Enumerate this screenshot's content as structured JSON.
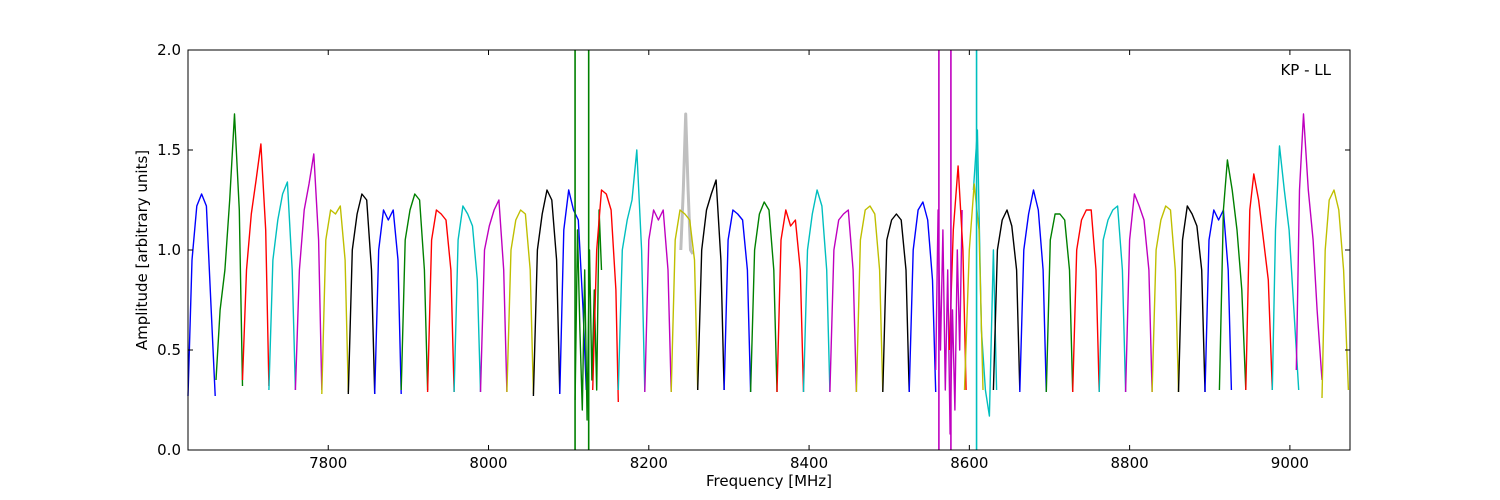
{
  "chart_data": {
    "type": "line",
    "title": "",
    "annotation": "KP - LL",
    "xlabel": "Frequency [MHz]",
    "ylabel": "Amplitude [arbitrary units]",
    "xlim": [
      7625,
      9075
    ],
    "ylim": [
      0.0,
      2.0
    ],
    "xticks": [
      7800,
      8000,
      8200,
      8400,
      8600,
      8800,
      9000
    ],
    "yticks": [
      0.0,
      0.5,
      1.0,
      1.5,
      2.0
    ],
    "grid": false,
    "palette": [
      "#0000ff",
      "#008000",
      "#ff0000",
      "#00bfbf",
      "#bf00bf",
      "#bfbf00",
      "#000000"
    ],
    "series": [
      {
        "color": "#0000ff",
        "x": [
          7625,
          7630,
          7636,
          7642,
          7648,
          7654,
          7659
        ],
        "y": [
          0.27,
          0.95,
          1.22,
          1.28,
          1.22,
          0.7,
          0.27
        ]
      },
      {
        "color": "#008000",
        "x": [
          7660,
          7665,
          7671,
          7677,
          7683,
          7689,
          7693
        ],
        "y": [
          0.35,
          0.7,
          0.9,
          1.25,
          1.68,
          1.2,
          0.32
        ]
      },
      {
        "color": "#ff0000",
        "x": [
          7693,
          7698,
          7704,
          7710,
          7716,
          7722,
          7726
        ],
        "y": [
          0.35,
          0.9,
          1.18,
          1.35,
          1.53,
          1.1,
          0.32
        ]
      },
      {
        "color": "#00bfbf",
        "x": [
          7726,
          7731,
          7737,
          7743,
          7749,
          7755,
          7759
        ],
        "y": [
          0.3,
          0.95,
          1.15,
          1.28,
          1.34,
          0.9,
          0.3
        ]
      },
      {
        "color": "#bf00bf",
        "x": [
          7759,
          7764,
          7770,
          7776,
          7782,
          7788,
          7792
        ],
        "y": [
          0.3,
          0.9,
          1.2,
          1.33,
          1.48,
          1.05,
          0.3
        ]
      },
      {
        "color": "#bfbf00",
        "x": [
          7792,
          7797,
          7803,
          7809,
          7815,
          7821,
          7825
        ],
        "y": [
          0.28,
          1.05,
          1.2,
          1.18,
          1.22,
          0.95,
          0.29
        ]
      },
      {
        "color": "#000000",
        "x": [
          7825,
          7830,
          7836,
          7842,
          7848,
          7854,
          7858
        ],
        "y": [
          0.28,
          1.0,
          1.18,
          1.28,
          1.25,
          0.9,
          0.28
        ]
      },
      {
        "color": "#0000ff",
        "x": [
          7858,
          7863,
          7869,
          7875,
          7881,
          7887,
          7891
        ],
        "y": [
          0.28,
          1.0,
          1.2,
          1.15,
          1.2,
          0.95,
          0.28
        ]
      },
      {
        "color": "#008000",
        "x": [
          7891,
          7896,
          7902,
          7908,
          7914,
          7920,
          7924
        ],
        "y": [
          0.3,
          1.05,
          1.2,
          1.28,
          1.25,
          0.9,
          0.3
        ]
      },
      {
        "color": "#ff0000",
        "x": [
          7924,
          7929,
          7935,
          7941,
          7947,
          7953,
          7957
        ],
        "y": [
          0.29,
          1.05,
          1.2,
          1.18,
          1.15,
          0.9,
          0.29
        ]
      },
      {
        "color": "#00bfbf",
        "x": [
          7957,
          7962,
          7968,
          7974,
          7980,
          7986,
          7990
        ],
        "y": [
          0.29,
          1.05,
          1.22,
          1.18,
          1.12,
          0.85,
          0.29
        ]
      },
      {
        "color": "#bf00bf",
        "x": [
          7990,
          7995,
          8001,
          8007,
          8013,
          8019,
          8023
        ],
        "y": [
          0.29,
          1.0,
          1.12,
          1.2,
          1.25,
          0.9,
          0.29
        ]
      },
      {
        "color": "#bfbf00",
        "x": [
          8023,
          8028,
          8034,
          8040,
          8046,
          8052,
          8056
        ],
        "y": [
          0.29,
          1.0,
          1.15,
          1.2,
          1.18,
          0.9,
          0.28
        ]
      },
      {
        "color": "#000000",
        "x": [
          8056,
          8061,
          8067,
          8073,
          8079,
          8085,
          8089
        ],
        "y": [
          0.27,
          1.0,
          1.18,
          1.3,
          1.25,
          0.95,
          0.28
        ]
      },
      {
        "color": "#0000ff",
        "x": [
          8089,
          8094,
          8100,
          8106,
          8112,
          8118,
          8122
        ],
        "y": [
          0.28,
          1.1,
          1.3,
          1.2,
          1.15,
          0.7,
          0.3
        ]
      },
      {
        "color": "#008000",
        "x": [
          8108,
          8111,
          8114,
          8117,
          8120,
          8123,
          8126,
          8129,
          8132,
          8135,
          8138,
          8141
        ],
        "y": [
          0.25,
          1.1,
          0.6,
          0.2,
          0.9,
          0.15,
          1.0,
          0.35,
          0.8,
          0.3,
          1.2,
          0.9
        ]
      },
      {
        "color": "#ff0000",
        "x": [
          8130,
          8135,
          8141,
          8147,
          8153,
          8159,
          8162
        ],
        "y": [
          0.3,
          1.0,
          1.3,
          1.28,
          1.2,
          0.8,
          0.24
        ]
      },
      {
        "color": "#00bfbf",
        "x": [
          8162,
          8167,
          8173,
          8179,
          8185,
          8191,
          8195
        ],
        "y": [
          0.3,
          1.0,
          1.15,
          1.25,
          1.5,
          1.0,
          0.29
        ]
      },
      {
        "color": "#bf00bf",
        "x": [
          8195,
          8200,
          8206,
          8212,
          8218,
          8224,
          8228
        ],
        "y": [
          0.29,
          1.05,
          1.2,
          1.15,
          1.2,
          0.9,
          0.29
        ]
      },
      {
        "color": "#bfbf00",
        "x": [
          8228,
          8233,
          8239,
          8245,
          8251,
          8257,
          8261
        ],
        "y": [
          0.29,
          1.05,
          1.2,
          1.18,
          1.15,
          0.95,
          0.3
        ]
      },
      {
        "color": "#000000",
        "x": [
          8261,
          8266,
          8272,
          8278,
          8284,
          8290,
          8294
        ],
        "y": [
          0.3,
          1.0,
          1.2,
          1.28,
          1.35,
          0.95,
          0.3
        ]
      },
      {
        "color": "#0000ff",
        "x": [
          8294,
          8299,
          8305,
          8311,
          8317,
          8323,
          8327
        ],
        "y": [
          0.3,
          1.05,
          1.2,
          1.18,
          1.15,
          0.9,
          0.29
        ]
      },
      {
        "color": "#008000",
        "x": [
          8327,
          8332,
          8338,
          8344,
          8350,
          8356,
          8360
        ],
        "y": [
          0.29,
          1.0,
          1.18,
          1.24,
          1.2,
          0.9,
          0.29
        ]
      },
      {
        "color": "#ff0000",
        "x": [
          8360,
          8365,
          8371,
          8377,
          8383,
          8389,
          8393
        ],
        "y": [
          0.29,
          1.05,
          1.2,
          1.12,
          1.15,
          0.9,
          0.29
        ]
      },
      {
        "color": "#00bfbf",
        "x": [
          8393,
          8398,
          8404,
          8410,
          8416,
          8422,
          8426
        ],
        "y": [
          0.29,
          1.0,
          1.18,
          1.3,
          1.22,
          0.9,
          0.29
        ]
      },
      {
        "color": "#bf00bf",
        "x": [
          8426,
          8431,
          8437,
          8443,
          8449,
          8455,
          8459
        ],
        "y": [
          0.29,
          1.0,
          1.15,
          1.18,
          1.2,
          0.9,
          0.29
        ]
      },
      {
        "color": "#bfbf00",
        "x": [
          8459,
          8464,
          8470,
          8476,
          8482,
          8488,
          8492
        ],
        "y": [
          0.29,
          1.05,
          1.2,
          1.22,
          1.18,
          0.9,
          0.29
        ]
      },
      {
        "color": "#000000",
        "x": [
          8492,
          8497,
          8503,
          8509,
          8515,
          8521,
          8525
        ],
        "y": [
          0.29,
          1.05,
          1.15,
          1.18,
          1.15,
          0.9,
          0.29
        ]
      },
      {
        "color": "#0000ff",
        "x": [
          8525,
          8530,
          8536,
          8542,
          8548,
          8554,
          8558
        ],
        "y": [
          0.29,
          1.0,
          1.2,
          1.24,
          1.15,
          0.85,
          0.29
        ]
      },
      {
        "color": "#bf00bf",
        "x": [
          8558,
          8561,
          8564,
          8567,
          8570,
          8573,
          8576,
          8579,
          8582,
          8585,
          8588,
          8591
        ],
        "y": [
          0.4,
          1.2,
          0.5,
          1.1,
          0.3,
          0.9,
          0.08,
          0.7,
          0.2,
          1.0,
          0.5,
          1.2
        ]
      },
      {
        "color": "#ff0000",
        "x": [
          8575,
          8580,
          8586,
          8592,
          8596
        ],
        "y": [
          0.5,
          1.1,
          1.42,
          1.0,
          0.3
        ]
      },
      {
        "color": "#00bfbf",
        "x": [
          8605,
          8610,
          8615,
          8620,
          8625,
          8630,
          8634
        ],
        "y": [
          1.3,
          1.6,
          0.6,
          0.3,
          0.17,
          1.0,
          0.3
        ]
      },
      {
        "color": "#bfbf00",
        "x": [
          8594,
          8600,
          8606,
          8612,
          8617
        ],
        "y": [
          0.3,
          1.0,
          1.33,
          1.1,
          0.3
        ]
      },
      {
        "color": "#000000",
        "x": [
          8630,
          8635,
          8641,
          8647,
          8653,
          8659,
          8663
        ],
        "y": [
          0.3,
          1.0,
          1.15,
          1.2,
          1.12,
          0.9,
          0.3
        ]
      },
      {
        "color": "#0000ff",
        "x": [
          8663,
          8668,
          8674,
          8680,
          8686,
          8692,
          8696
        ],
        "y": [
          0.29,
          1.0,
          1.18,
          1.3,
          1.2,
          0.9,
          0.29
        ]
      },
      {
        "color": "#008000",
        "x": [
          8696,
          8701,
          8707,
          8713,
          8719,
          8725,
          8729
        ],
        "y": [
          0.29,
          1.05,
          1.18,
          1.18,
          1.15,
          0.9,
          0.29
        ]
      },
      {
        "color": "#ff0000",
        "x": [
          8729,
          8734,
          8740,
          8746,
          8752,
          8758,
          8762
        ],
        "y": [
          0.29,
          1.0,
          1.15,
          1.2,
          1.2,
          0.9,
          0.29
        ]
      },
      {
        "color": "#00bfbf",
        "x": [
          8762,
          8767,
          8773,
          8779,
          8785,
          8791,
          8795
        ],
        "y": [
          0.29,
          1.05,
          1.15,
          1.2,
          1.22,
          0.9,
          0.29
        ]
      },
      {
        "color": "#bf00bf",
        "x": [
          8795,
          8800,
          8806,
          8812,
          8818,
          8824,
          8828
        ],
        "y": [
          0.29,
          1.05,
          1.28,
          1.22,
          1.15,
          0.9,
          0.29
        ]
      },
      {
        "color": "#bfbf00",
        "x": [
          8828,
          8833,
          8839,
          8845,
          8851,
          8857,
          8861
        ],
        "y": [
          0.29,
          1.0,
          1.15,
          1.22,
          1.2,
          0.9,
          0.29
        ]
      },
      {
        "color": "#000000",
        "x": [
          8861,
          8866,
          8872,
          8878,
          8884,
          8890,
          8894
        ],
        "y": [
          0.29,
          1.05,
          1.22,
          1.18,
          1.12,
          0.9,
          0.29
        ]
      },
      {
        "color": "#0000ff",
        "x": [
          8894,
          8899,
          8905,
          8911,
          8917,
          8923,
          8927
        ],
        "y": [
          0.29,
          1.05,
          1.2,
          1.15,
          1.2,
          0.9,
          0.3
        ]
      },
      {
        "color": "#008000",
        "x": [
          8912,
          8917,
          8922,
          8928,
          8934,
          8940,
          8945
        ],
        "y": [
          0.3,
          1.2,
          1.45,
          1.3,
          1.1,
          0.8,
          0.3
        ]
      },
      {
        "color": "#ff0000",
        "x": [
          8945,
          8950,
          8955,
          8961,
          8967,
          8973,
          8978
        ],
        "y": [
          0.3,
          1.2,
          1.38,
          1.25,
          1.05,
          0.85,
          0.3
        ]
      },
      {
        "color": "#00bfbf",
        "x": [
          8978,
          8982,
          8987,
          8993,
          8999,
          9005,
          9011
        ],
        "y": [
          0.3,
          1.1,
          1.52,
          1.3,
          1.1,
          0.7,
          0.3
        ]
      },
      {
        "color": "#bf00bf",
        "x": [
          9008,
          9012,
          9017,
          9023,
          9029,
          9034,
          9040
        ],
        "y": [
          0.4,
          1.3,
          1.68,
          1.3,
          1.05,
          0.7,
          0.35
        ]
      },
      {
        "color": "#bfbf00",
        "x": [
          9040,
          9044,
          9049,
          9055,
          9061,
          9067,
          9073
        ],
        "y": [
          0.26,
          1.0,
          1.25,
          1.3,
          1.2,
          0.9,
          0.3
        ]
      }
    ],
    "spikes": [
      {
        "color": "#008000",
        "x": 8108,
        "y": [
          0.0,
          2.0
        ]
      },
      {
        "color": "#008000",
        "x": 8125,
        "y": [
          0.0,
          2.0
        ]
      },
      {
        "color": "#bf00bf",
        "x": 8562,
        "y": [
          0.0,
          2.0
        ]
      },
      {
        "color": "#bf00bf",
        "x": 8577,
        "y": [
          0.0,
          2.0
        ]
      },
      {
        "color": "#00bfbf",
        "x": 8609,
        "y": [
          0.0,
          2.0
        ]
      }
    ],
    "flagged": {
      "color": "#bfbfbf",
      "x": [
        8240,
        8243,
        8246,
        8249,
        8252,
        8255
      ],
      "y": [
        1.0,
        1.3,
        1.68,
        1.3,
        1.0,
        0.98
      ]
    }
  }
}
